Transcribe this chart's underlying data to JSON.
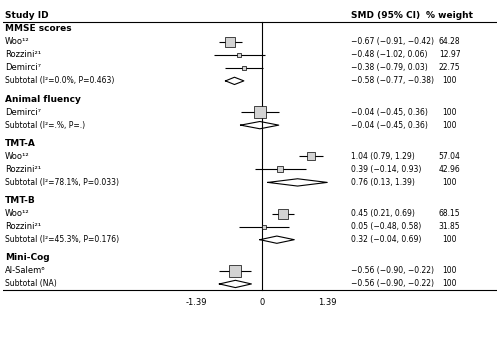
{
  "title_col1": "Study ID",
  "title_col2": "SMD (95% CI)",
  "title_col3": "% weight",
  "x_min": -1.39,
  "x_max": 1.39,
  "x_ticks": [
    -1.39,
    0,
    1.39
  ],
  "sections": [
    {
      "header": "MMSE scores",
      "studies": [
        {
          "label": "Woo¹²",
          "smd": -0.67,
          "ci_lo": -0.91,
          "ci_hi": -0.42,
          "weight": 64.28,
          "weight_str": "64.28",
          "smd_str": "−0.67 (−0.91, −0.42)"
        },
        {
          "label": "Rozzini²¹",
          "smd": -0.48,
          "ci_lo": -1.02,
          "ci_hi": 0.06,
          "weight": 12.97,
          "weight_str": "12.97",
          "smd_str": "−0.48 (−1.02, 0.06)"
        },
        {
          "label": "Demirci⁷",
          "smd": -0.38,
          "ci_lo": -0.79,
          "ci_hi": 0.03,
          "weight": 22.75,
          "weight_str": "22.75",
          "smd_str": "−0.38 (−0.79, 0.03)"
        }
      ],
      "subtotal": {
        "label": "Subtotal (I²=0.0%, P=0.463)",
        "smd": -0.58,
        "ci_lo": -0.77,
        "ci_hi": -0.38,
        "smd_str": "−0.58 (−0.77, −0.38)",
        "weight_str": "100"
      }
    },
    {
      "header": "Animal fluency",
      "studies": [
        {
          "label": "Demirci⁷",
          "smd": -0.04,
          "ci_lo": -0.45,
          "ci_hi": 0.36,
          "weight": 100,
          "weight_str": "100",
          "smd_str": "−0.04 (−0.45, 0.36)"
        }
      ],
      "subtotal": {
        "label": "Subtotal (I²=.%, P=.)",
        "smd": -0.04,
        "ci_lo": -0.45,
        "ci_hi": 0.36,
        "smd_str": "−0.04 (−0.45, 0.36)",
        "weight_str": "100"
      }
    },
    {
      "header": "TMT-A",
      "studies": [
        {
          "label": "Woo¹²",
          "smd": 1.04,
          "ci_lo": 0.79,
          "ci_hi": 1.29,
          "weight": 57.04,
          "weight_str": "57.04",
          "smd_str": "1.04 (0.79, 1.29)"
        },
        {
          "label": "Rozzini²¹",
          "smd": 0.39,
          "ci_lo": -0.14,
          "ci_hi": 0.93,
          "weight": 42.96,
          "weight_str": "42.96",
          "smd_str": "0.39 (−0.14, 0.93)"
        }
      ],
      "subtotal": {
        "label": "Subtotal (I²=78.1%, P=0.033)",
        "smd": 0.76,
        "ci_lo": 0.13,
        "ci_hi": 1.39,
        "smd_str": "0.76 (0.13, 1.39)",
        "weight_str": "100"
      }
    },
    {
      "header": "TMT-B",
      "studies": [
        {
          "label": "Woo¹²",
          "smd": 0.45,
          "ci_lo": 0.21,
          "ci_hi": 0.69,
          "weight": 68.15,
          "weight_str": "68.15",
          "smd_str": "0.45 (0.21, 0.69)"
        },
        {
          "label": "Rozzini²¹",
          "smd": 0.05,
          "ci_lo": -0.48,
          "ci_hi": 0.58,
          "weight": 31.85,
          "weight_str": "31.85",
          "smd_str": "0.05 (−0.48, 0.58)"
        }
      ],
      "subtotal": {
        "label": "Subtotal (I²=45.3%, P=0.176)",
        "smd": 0.32,
        "ci_lo": -0.04,
        "ci_hi": 0.69,
        "smd_str": "0.32 (−0.04, 0.69)",
        "weight_str": "100"
      }
    },
    {
      "header": "Mini-Cog",
      "studies": [
        {
          "label": "Al-Salem⁶",
          "smd": -0.56,
          "ci_lo": -0.9,
          "ci_hi": -0.22,
          "weight": 100,
          "weight_str": "100",
          "smd_str": "−0.56 (−0.90, −0.22)"
        }
      ],
      "subtotal": {
        "label": "Subtotal (NA)",
        "smd": -0.56,
        "ci_lo": -0.9,
        "ci_hi": -0.22,
        "smd_str": "−0.56 (−0.90, −0.22)",
        "weight_str": "100"
      }
    }
  ]
}
